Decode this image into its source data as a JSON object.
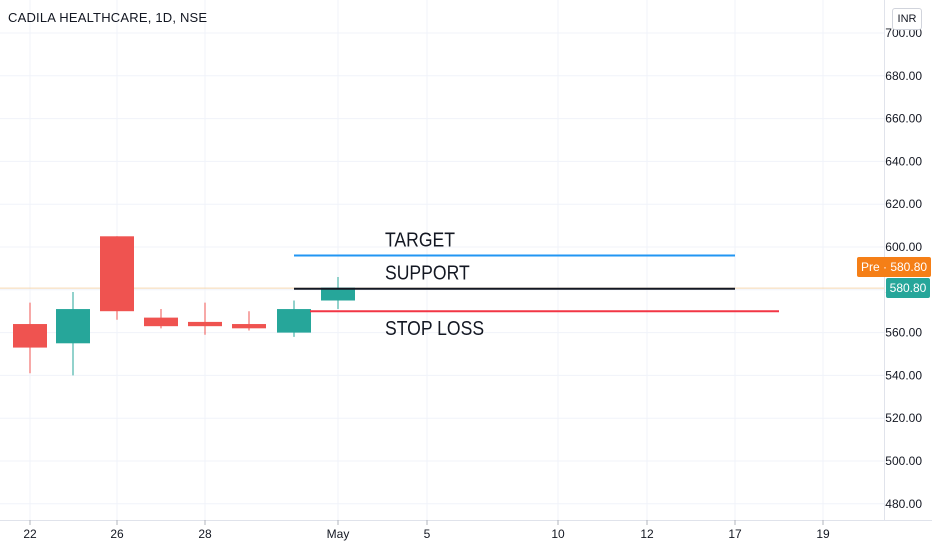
{
  "header": {
    "symbol_title": "CADILA HEALTHCARE, 1D, NSE",
    "currency_button": "INR"
  },
  "badges": {
    "pre_market": "Pre · 580.80",
    "last_price": "580.80"
  },
  "colors": {
    "up": "#26a69a",
    "down": "#ef5350",
    "grid": "#f0f3fa",
    "target_line": "#2196f3",
    "support_line": "#131722",
    "stop_loss_line": "#f23645",
    "price_line": "#f5d7b0"
  },
  "chart_data": {
    "type": "candlestick",
    "title": "CADILA HEALTHCARE, 1D, NSE",
    "ylim": [
      475,
      705
    ],
    "yticks": [
      "700.00",
      "680.00",
      "660.00",
      "640.00",
      "620.00",
      "600.00",
      "580.00",
      "560.00",
      "540.00",
      "520.00",
      "500.00",
      "480.00"
    ],
    "xtick_labels": [
      "22",
      "26",
      "28",
      "May",
      "5",
      "10",
      "12",
      "17",
      "19"
    ],
    "candles": [
      {
        "date": "22",
        "open": 564,
        "high": 574,
        "low": 541,
        "close": 553
      },
      {
        "date": "23",
        "open": 555,
        "high": 579,
        "low": 540,
        "close": 571
      },
      {
        "date": "26",
        "open": 605,
        "high": 605,
        "low": 566,
        "close": 570
      },
      {
        "date": "27",
        "open": 567,
        "high": 571,
        "low": 562,
        "close": 563
      },
      {
        "date": "28",
        "open": 565,
        "high": 574,
        "low": 559,
        "close": 563
      },
      {
        "date": "29",
        "open": 564,
        "high": 570,
        "low": 561,
        "close": 562
      },
      {
        "date": "30",
        "open": 560,
        "high": 575,
        "low": 558,
        "close": 571
      },
      {
        "date": "May",
        "open": 575,
        "high": 586,
        "low": 571,
        "close": 581
      }
    ],
    "levels": [
      {
        "label": "TARGET",
        "price": 596
      },
      {
        "label": "SUPPORT",
        "price": 580.5
      },
      {
        "label": "STOP LOSS",
        "price": 570
      }
    ],
    "last_price": 580.8
  }
}
